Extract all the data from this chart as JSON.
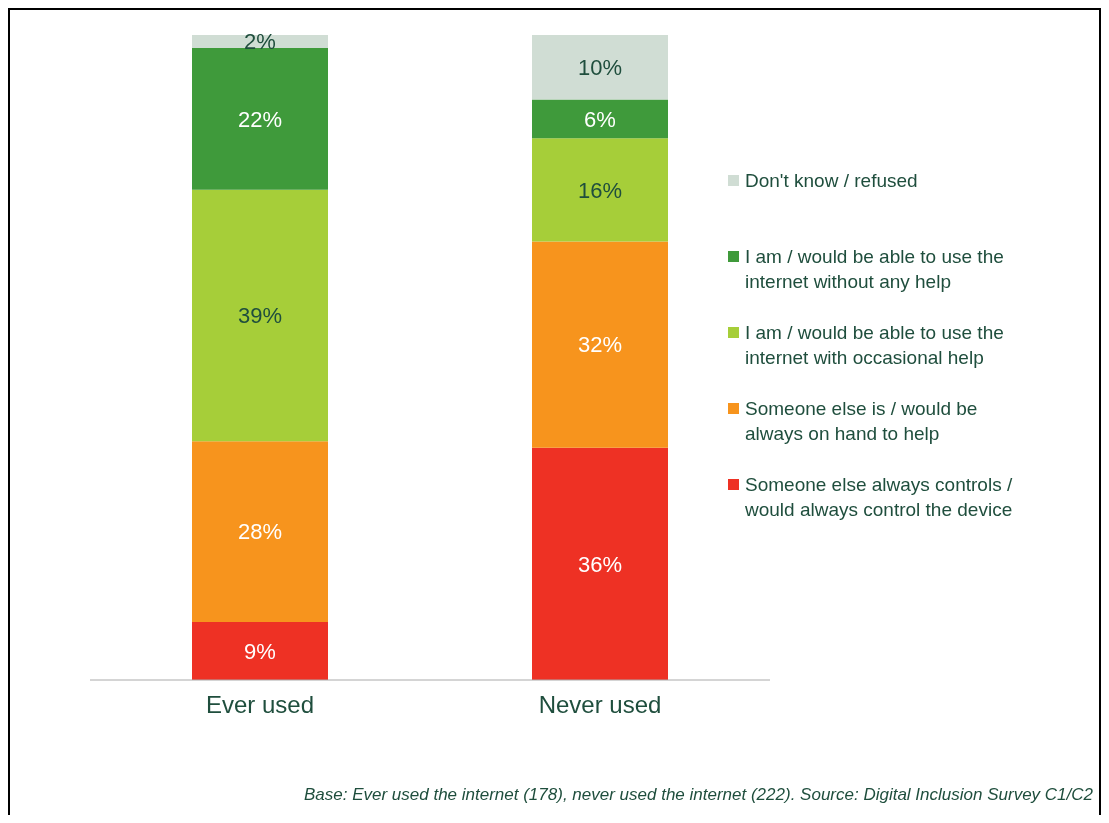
{
  "chart_data": {
    "type": "bar",
    "stacked": true,
    "categories": [
      "Ever used",
      "Never used"
    ],
    "series": [
      {
        "name": "Someone else always controls / would always control the device",
        "color": "#ee3124",
        "values": [
          9,
          36
        ],
        "value_labels": [
          "9%",
          "36%"
        ]
      },
      {
        "name": "Someone else is / would be always on hand to help",
        "color": "#f7941d",
        "values": [
          28,
          32
        ],
        "value_labels": [
          "28%",
          "32%"
        ]
      },
      {
        "name": "I am / would be able to use the internet with occasional help",
        "color": "#a6ce39",
        "values": [
          39,
          16
        ],
        "value_labels": [
          "39%",
          "16%"
        ]
      },
      {
        "name": "I am / would be able to use the internet without any help",
        "color": "#3f9a3b",
        "values": [
          22,
          6
        ],
        "value_labels": [
          "22%",
          "6%"
        ]
      },
      {
        "name": "Don't know / refused",
        "color": "#d0ddd4",
        "values": [
          2,
          10
        ],
        "value_labels": [
          "2%",
          "10%"
        ]
      }
    ],
    "legend": "right",
    "annotations": [
      "Base: Ever used the internet (178), never used the internet (222). Source: Digital Inclusion Survey C1/C2"
    ]
  }
}
